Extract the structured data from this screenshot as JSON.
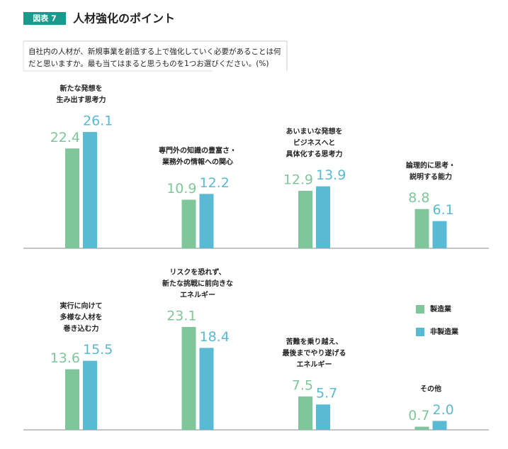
{
  "chart_data": {
    "type": "bar",
    "figure_label": "図表 7",
    "title": "人材強化のポイント",
    "question": [
      "自社内の人材が、新規事業を創造する上で強化していく必要があることは何",
      "だと思いますか。最も当てはまると思うものを1つお選びください。(%)"
    ],
    "categories": [
      [
        "新たな発想を",
        "生み出す思考力"
      ],
      [
        "専門外の知識の豊富さ・",
        "業務外の情報への関心"
      ],
      [
        "あいまいな発想を",
        "ビジネスへと",
        "具体化する思考力"
      ],
      [
        "論理的に思考・",
        "説明する能力"
      ],
      [
        "実行に向けて",
        "多様な人材を",
        "巻き込む力"
      ],
      [
        "リスクを恐れず、",
        "新たな挑戦に前向きな",
        "エネルギー"
      ],
      [
        "苦難を乗り越え、",
        "最後までやり遂げる",
        "エネルギー"
      ],
      [
        "その他"
      ]
    ],
    "series": [
      {
        "name": "製造業",
        "color": "#80c69b",
        "values": [
          22.4,
          10.9,
          12.9,
          8.8,
          13.6,
          23.1,
          7.5,
          0.7
        ],
        "value_labels": [
          "22.4",
          "10.9",
          "12.9",
          "8.8",
          "13.6",
          "23.1",
          "7.5",
          "0.7"
        ]
      },
      {
        "name": "非製造業",
        "color": "#5ab9d3",
        "values": [
          26.1,
          12.2,
          13.9,
          6.1,
          15.5,
          18.4,
          5.7,
          2.0
        ],
        "value_labels": [
          "26.1",
          "12.2",
          "13.9",
          "6.1",
          "15.5",
          "18.4",
          "5.7",
          "2.0"
        ]
      }
    ]
  }
}
